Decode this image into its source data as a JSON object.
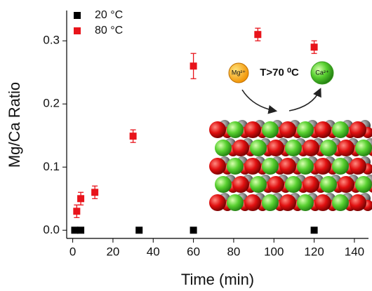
{
  "chart_data": {
    "type": "scatter",
    "xlabel": "Time (min)",
    "ylabel": "Mg/Ca Ratio",
    "xlim": [
      -3,
      147
    ],
    "ylim": [
      -0.013,
      0.348
    ],
    "xticks": [
      0,
      20,
      40,
      60,
      80,
      100,
      120,
      140
    ],
    "yticks": [
      {
        "value": 0,
        "label": "0.0"
      },
      0.1,
      0.2,
      0.3
    ],
    "legend": "top-left",
    "series": [
      {
        "name": "20 °C",
        "color": "#000000",
        "x": [
          1,
          4,
          33,
          60,
          120
        ],
        "values": [
          0,
          0,
          0,
          0,
          0
        ]
      },
      {
        "name": "80 °C",
        "color": "#e8141b",
        "x": [
          2,
          4,
          11,
          30,
          60,
          92,
          120
        ],
        "values": [
          0.03,
          0.05,
          0.06,
          0.149,
          0.26,
          0.31,
          0.29
        ],
        "errors": [
          0.01,
          0.01,
          0.01,
          0.01,
          0.02,
          0.01,
          0.01
        ]
      }
    ],
    "annotations": {
      "reactant": "Mg²⁺",
      "condition": "T>70 ⁰C",
      "product": "Ca²⁺"
    }
  }
}
